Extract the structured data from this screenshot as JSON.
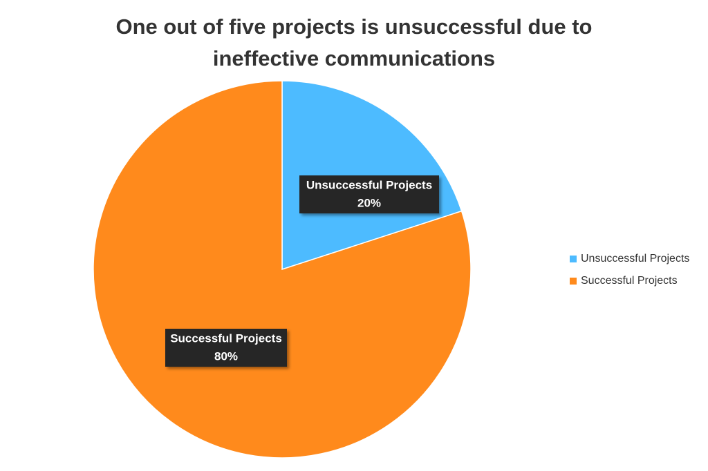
{
  "chart_data": {
    "type": "pie",
    "title": "One out of five projects is unsuccessful due to ineffective communications",
    "categories": [
      "Unsuccessful Projects",
      "Successful Projects"
    ],
    "values": [
      20,
      80
    ],
    "value_labels": [
      "20%",
      "80%"
    ],
    "colors": [
      "#4dbbff",
      "#ff8a1c"
    ],
    "legend": "right"
  }
}
